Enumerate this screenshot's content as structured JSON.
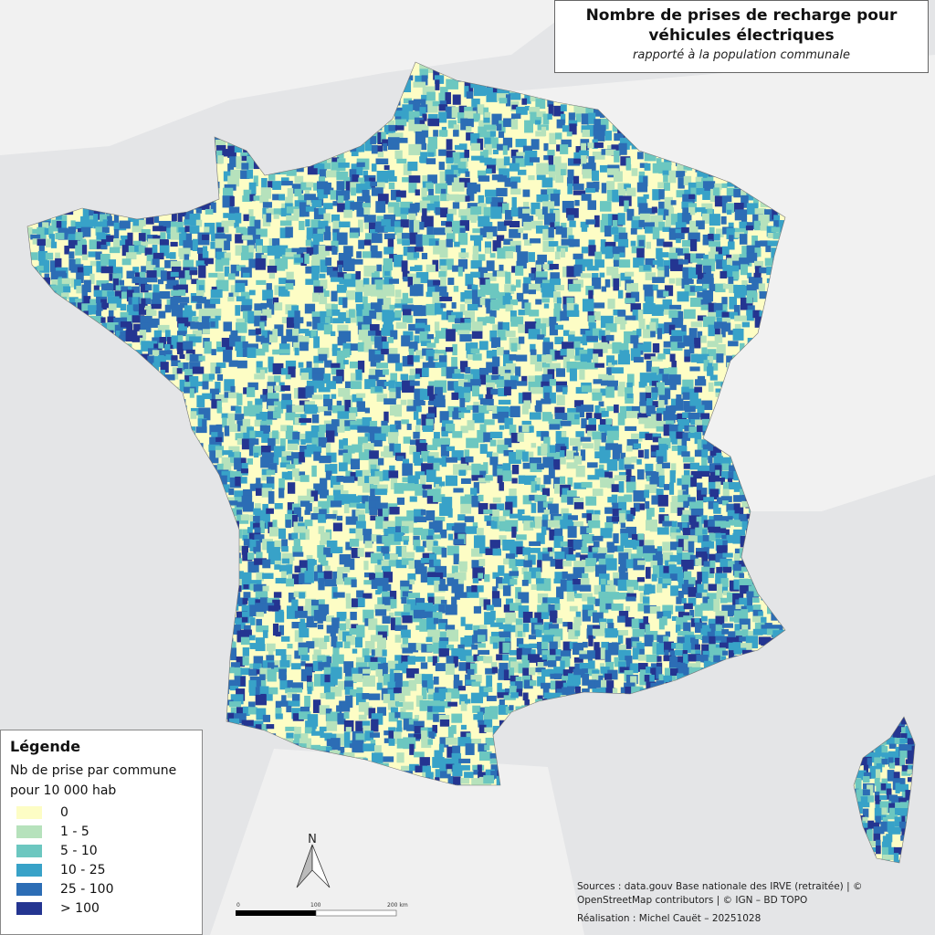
{
  "title": "Nombre de prises de recharge pour véhicules électriques",
  "subtitle": "rapporté à la population communale",
  "legend": {
    "heading": "Légende",
    "title_line1": "Nb de prise par commune",
    "title_line2": "pour 10 000 hab",
    "classes": [
      {
        "label": "0",
        "color": "#fdfdc5"
      },
      {
        "label": "1 - 5",
        "color": "#b6e2bc"
      },
      {
        "label": "5 - 10",
        "color": "#6cc7c0"
      },
      {
        "label": "10 - 25",
        "color": "#38a2c8"
      },
      {
        "label": "25 - 100",
        "color": "#2c6db5"
      },
      {
        "label": "> 100",
        "color": "#243591"
      }
    ]
  },
  "north_label": "N",
  "scale": {
    "ticks": [
      "0",
      "100",
      "200 km"
    ]
  },
  "sources": "Sources : data.gouv Base nationale des IRVE (retraitée) | © OpenStreetMap contributors | © IGN – BD TOPO",
  "realisation": "Réalisation : Michel Cauët – 20251028",
  "colors": {
    "sea": "#e4e5e7",
    "land_outside": "#f1f1f1"
  }
}
